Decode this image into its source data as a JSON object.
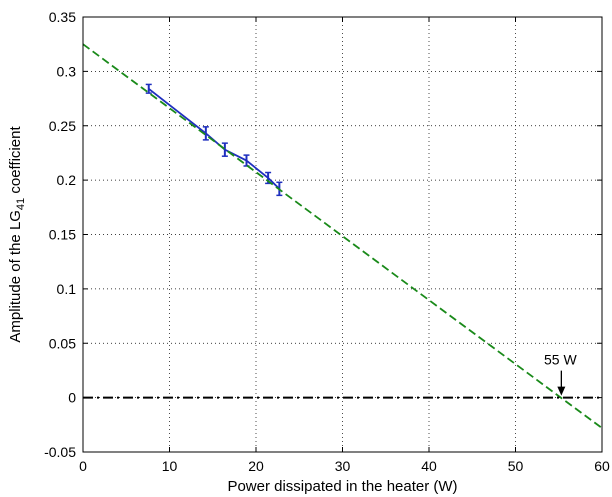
{
  "chart_data": {
    "type": "line",
    "title": "",
    "xlabel": "Power dissipated in the heater (W)",
    "ylabel_parts": [
      "Amplitude of the LG",
      "41",
      " coefficient"
    ],
    "xlim": [
      0,
      60
    ],
    "ylim": [
      -0.05,
      0.35
    ],
    "xticks": [
      0,
      10,
      20,
      30,
      40,
      50,
      60
    ],
    "yticks": [
      -0.05,
      0,
      0.05,
      0.1,
      0.15,
      0.2,
      0.25,
      0.3,
      0.35
    ],
    "xtick_labels": [
      "0",
      "10",
      "20",
      "30",
      "40",
      "50",
      "60"
    ],
    "ytick_labels": [
      "-0.05",
      "0",
      "0.05",
      "0.1",
      "0.15",
      "0.2",
      "0.25",
      "0.3",
      "0.35"
    ],
    "grid": true,
    "series": [
      {
        "style": "solid-errorbar",
        "color": "#1f2fbf",
        "x": [
          7.6,
          14.2,
          16.4,
          18.9,
          21.4,
          22.7
        ],
        "y": [
          0.284,
          0.243,
          0.228,
          0.218,
          0.202,
          0.192
        ],
        "err": [
          0.004,
          0.006,
          0.006,
          0.005,
          0.005,
          0.006
        ]
      },
      {
        "style": "dashed",
        "color": "#1a8a1a",
        "x": [
          0,
          60
        ],
        "y": [
          0.325,
          -0.028
        ]
      },
      {
        "style": "dash-dot",
        "color": "#000000",
        "x": [
          0,
          60
        ],
        "y": [
          0,
          0
        ]
      }
    ],
    "annotations": [
      {
        "text": "55 W",
        "x": 55.3,
        "y": 0
      }
    ]
  }
}
